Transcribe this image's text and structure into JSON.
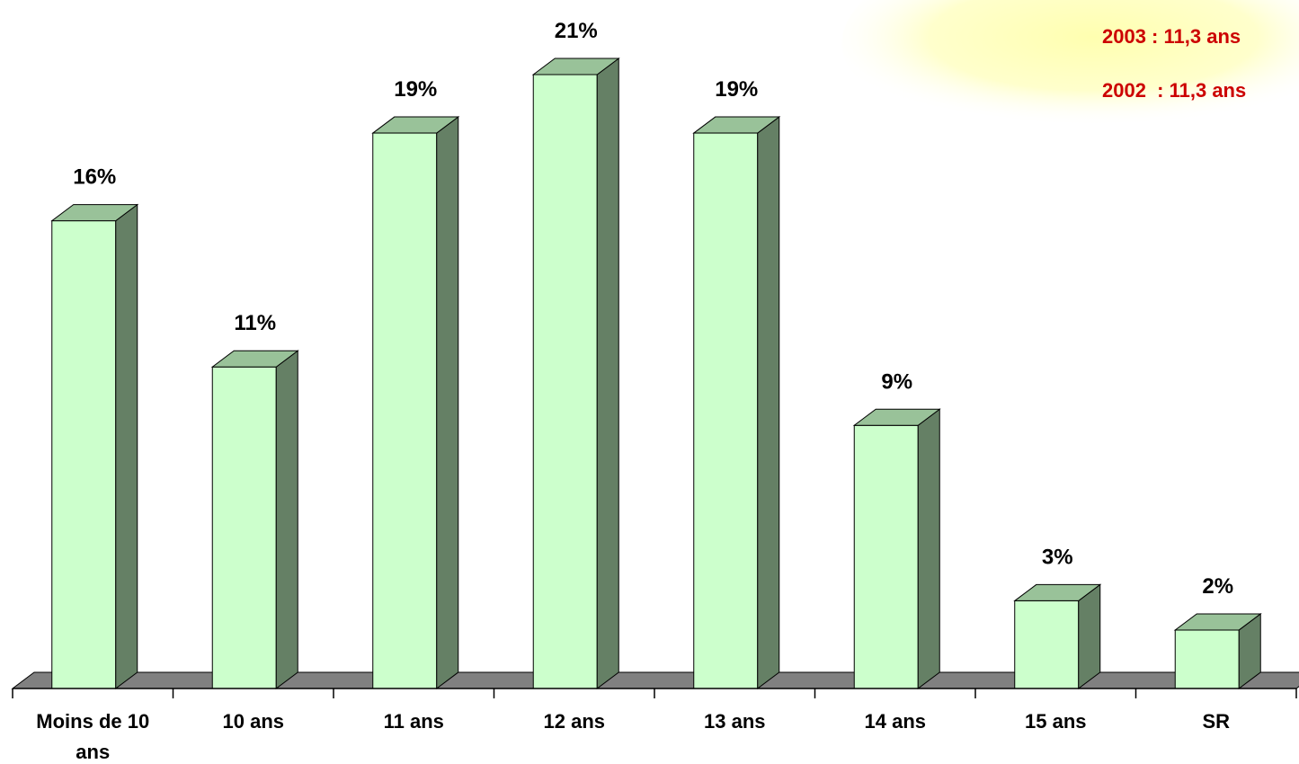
{
  "chart_data": {
    "type": "bar",
    "categories": [
      "Moins de 10 ans",
      "10 ans",
      "11 ans",
      "12 ans",
      "13 ans",
      "14 ans",
      "15 ans",
      "SR"
    ],
    "values": [
      16,
      11,
      19,
      21,
      19,
      9,
      3,
      2
    ],
    "data_labels": [
      "16%",
      "11%",
      "19%",
      "21%",
      "19%",
      "9%",
      "3%",
      "2%"
    ],
    "title": "",
    "xlabel": "",
    "ylabel": "",
    "ylim": [
      0,
      21
    ],
    "grid": false,
    "style": "3d-column",
    "colors": {
      "front": "#ccffcc",
      "side": "#658065",
      "top": "#99c299",
      "floor": "#808080"
    },
    "annotation": [
      "2003 : 11,3 ans",
      "2002  : 11,3 ans"
    ],
    "annotation_color": "#cc0000"
  }
}
